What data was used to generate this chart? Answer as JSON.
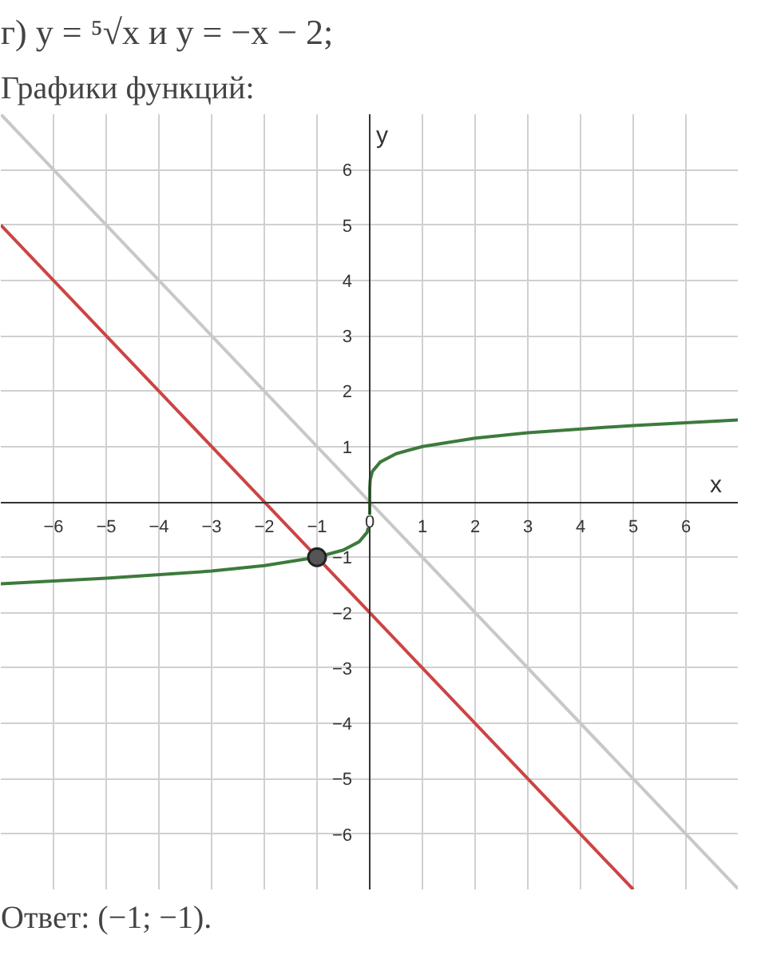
{
  "chart_data": {
    "type": "line",
    "title": "г) y = ⁵√x  и  y = −x − 2;",
    "subtitle": "Графики функций:",
    "xlabel": "x",
    "ylabel": "y",
    "annotations": [
      "Ответ: (−1; −1)."
    ],
    "xlim": [
      -7,
      7
    ],
    "ylim": [
      -7,
      7
    ],
    "xticks": [
      -6,
      -5,
      -4,
      -3,
      -2,
      -1,
      0,
      1,
      2,
      3,
      4,
      5,
      6
    ],
    "yticks": [
      -6,
      -5,
      -4,
      -3,
      -2,
      -1,
      1,
      2,
      3,
      4,
      5,
      6
    ],
    "grid": true,
    "marker": "none",
    "line_style": "solid",
    "series": [
      {
        "color": "#c8c8c8",
        "x": [
          -7,
          7
        ],
        "values": [
          7,
          -7
        ]
      },
      {
        "color": "#cc4444",
        "x": [
          -7,
          5
        ],
        "values": [
          5,
          -7
        ]
      },
      {
        "color": "#3d7a3d",
        "x": [
          -7,
          -5,
          -3,
          -2,
          -1,
          -0.5,
          -0.2,
          -0.05,
          -0.01,
          -0.001,
          0,
          0.001,
          0.01,
          0.05,
          0.2,
          0.5,
          1,
          2,
          3,
          5,
          7
        ],
        "values": [
          -1.48,
          -1.38,
          -1.25,
          -1.15,
          -1,
          -0.87,
          -0.72,
          -0.55,
          -0.4,
          -0.25,
          0,
          0.25,
          0.4,
          0.55,
          0.72,
          0.87,
          1,
          1.15,
          1.25,
          1.38,
          1.48
        ]
      },
      {
        "type": "scatter",
        "marker": "circle",
        "color": "#555555",
        "x": [
          -1
        ],
        "values": [
          -1
        ]
      }
    ]
  }
}
